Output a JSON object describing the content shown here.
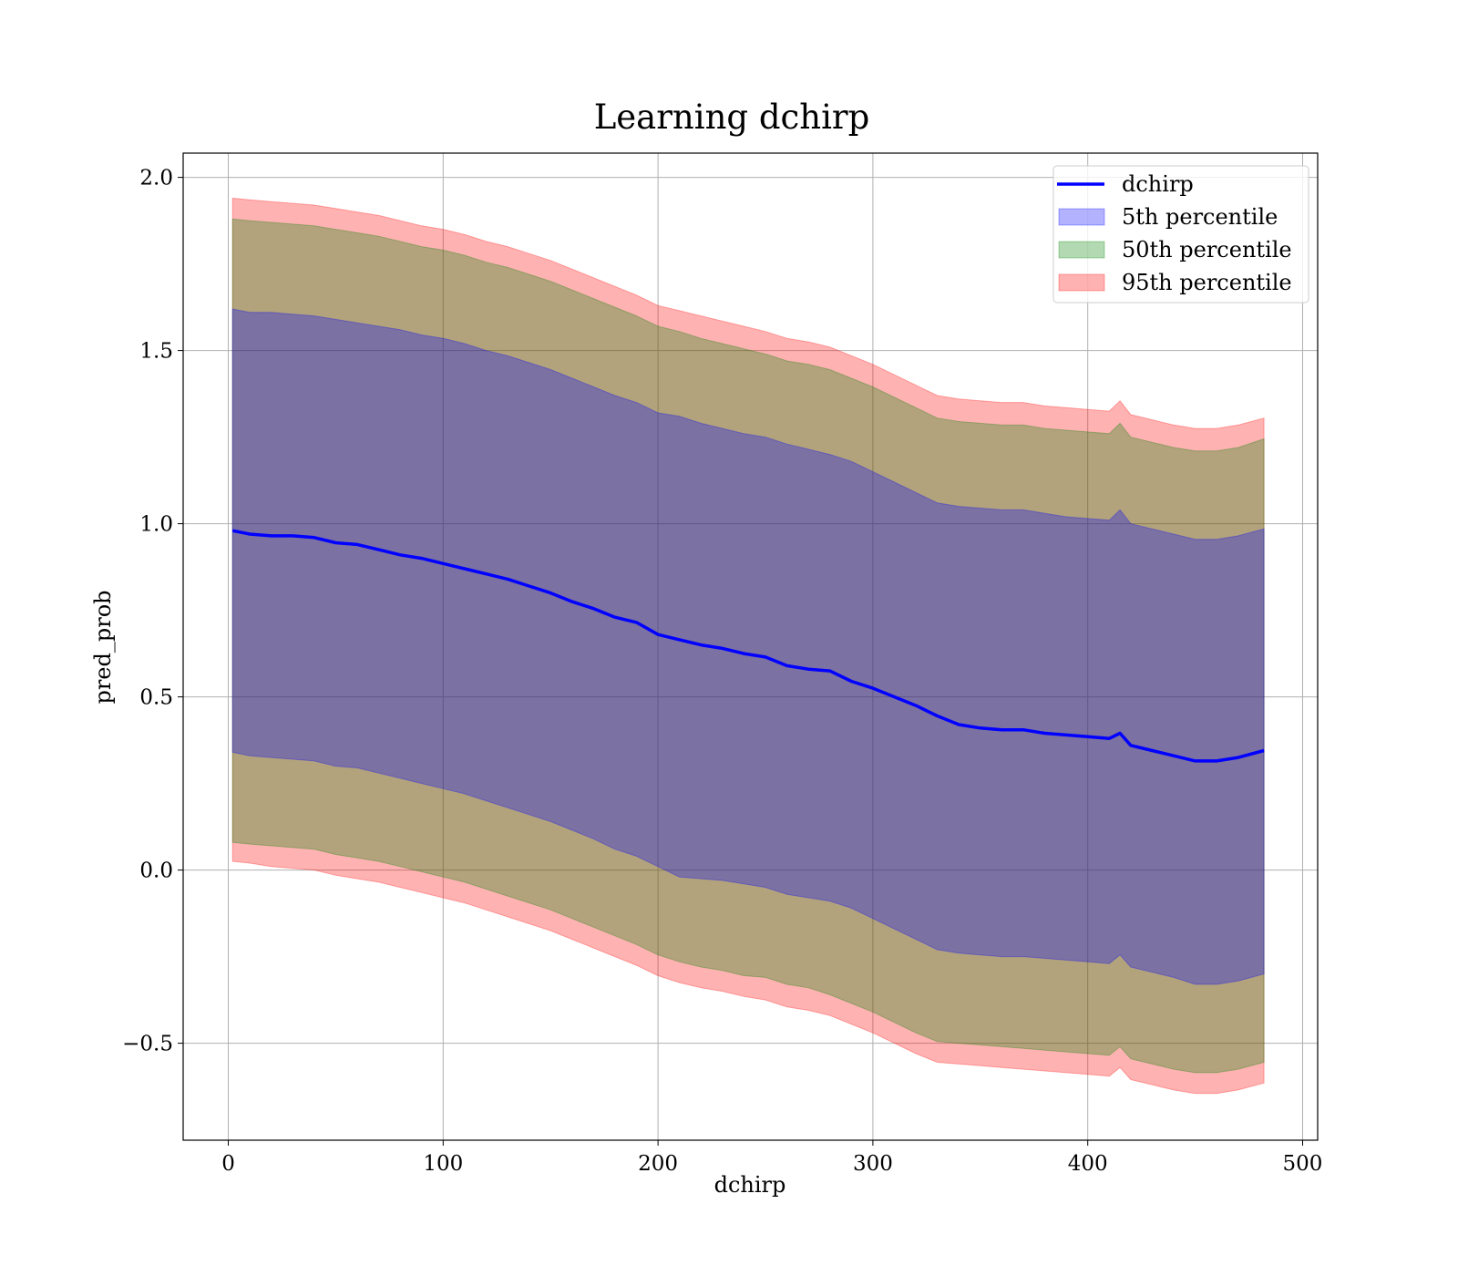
{
  "chart_data": {
    "type": "area",
    "title": "Learning dchirp",
    "xlabel": "dchirp",
    "ylabel": "pred_prob",
    "xlim": [
      -21,
      507
    ],
    "ylim": [
      -0.78,
      2.07
    ],
    "xticks": [
      0,
      100,
      200,
      300,
      400,
      500
    ],
    "yticks": [
      -0.5,
      0.0,
      0.5,
      1.0,
      1.5,
      2.0
    ],
    "ytick_labels": [
      "−0.5",
      "0.0",
      "0.5",
      "1.0",
      "1.5",
      "2.0"
    ],
    "grid": true,
    "legend_position": "top-right",
    "x": [
      2,
      10,
      20,
      30,
      40,
      50,
      60,
      70,
      80,
      90,
      100,
      110,
      120,
      130,
      140,
      150,
      160,
      170,
      180,
      190,
      200,
      210,
      220,
      230,
      240,
      250,
      260,
      270,
      280,
      290,
      300,
      310,
      320,
      330,
      340,
      350,
      360,
      370,
      380,
      390,
      400,
      410,
      415,
      420,
      430,
      440,
      450,
      460,
      470,
      482
    ],
    "series": [
      {
        "name": "dchirp",
        "type": "line",
        "color": "#0000ff",
        "values": [
          0.98,
          0.97,
          0.965,
          0.965,
          0.96,
          0.945,
          0.94,
          0.925,
          0.91,
          0.9,
          0.885,
          0.87,
          0.855,
          0.84,
          0.82,
          0.8,
          0.775,
          0.755,
          0.73,
          0.715,
          0.68,
          0.665,
          0.65,
          0.64,
          0.625,
          0.615,
          0.59,
          0.58,
          0.575,
          0.545,
          0.525,
          0.5,
          0.475,
          0.445,
          0.42,
          0.41,
          0.405,
          0.405,
          0.395,
          0.39,
          0.385,
          0.38,
          0.395,
          0.36,
          0.345,
          0.33,
          0.315,
          0.315,
          0.325,
          0.345
        ]
      },
      {
        "name": "5th percentile",
        "type": "band",
        "color": "#0000ff",
        "upper": [
          1.62,
          1.61,
          1.61,
          1.605,
          1.6,
          1.59,
          1.58,
          1.57,
          1.56,
          1.545,
          1.535,
          1.52,
          1.5,
          1.485,
          1.465,
          1.445,
          1.42,
          1.395,
          1.37,
          1.35,
          1.32,
          1.31,
          1.29,
          1.275,
          1.26,
          1.25,
          1.23,
          1.215,
          1.2,
          1.18,
          1.15,
          1.12,
          1.09,
          1.06,
          1.05,
          1.045,
          1.04,
          1.04,
          1.03,
          1.02,
          1.015,
          1.01,
          1.04,
          1.0,
          0.985,
          0.97,
          0.955,
          0.955,
          0.965,
          0.985
        ],
        "lower": [
          0.34,
          0.33,
          0.325,
          0.32,
          0.315,
          0.3,
          0.295,
          0.28,
          0.265,
          0.25,
          0.235,
          0.22,
          0.2,
          0.18,
          0.16,
          0.14,
          0.115,
          0.09,
          0.06,
          0.04,
          0.01,
          -0.02,
          -0.025,
          -0.03,
          -0.04,
          -0.05,
          -0.07,
          -0.08,
          -0.09,
          -0.11,
          -0.14,
          -0.17,
          -0.2,
          -0.23,
          -0.24,
          -0.245,
          -0.25,
          -0.25,
          -0.255,
          -0.26,
          -0.265,
          -0.27,
          -0.245,
          -0.28,
          -0.295,
          -0.31,
          -0.33,
          -0.33,
          -0.32,
          -0.3
        ]
      },
      {
        "name": "50th percentile",
        "type": "band",
        "color": "#008000",
        "upper": [
          1.88,
          1.875,
          1.87,
          1.865,
          1.86,
          1.85,
          1.84,
          1.83,
          1.815,
          1.8,
          1.79,
          1.775,
          1.755,
          1.74,
          1.72,
          1.7,
          1.675,
          1.65,
          1.625,
          1.6,
          1.57,
          1.555,
          1.535,
          1.52,
          1.505,
          1.49,
          1.47,
          1.46,
          1.445,
          1.42,
          1.395,
          1.365,
          1.335,
          1.305,
          1.295,
          1.29,
          1.285,
          1.285,
          1.275,
          1.27,
          1.265,
          1.26,
          1.29,
          1.25,
          1.235,
          1.22,
          1.21,
          1.21,
          1.22,
          1.245
        ],
        "lower": [
          0.08,
          0.075,
          0.07,
          0.065,
          0.06,
          0.045,
          0.035,
          0.025,
          0.01,
          -0.005,
          -0.02,
          -0.035,
          -0.055,
          -0.075,
          -0.095,
          -0.115,
          -0.14,
          -0.165,
          -0.19,
          -0.215,
          -0.245,
          -0.265,
          -0.28,
          -0.29,
          -0.305,
          -0.31,
          -0.33,
          -0.34,
          -0.36,
          -0.385,
          -0.41,
          -0.44,
          -0.47,
          -0.495,
          -0.5,
          -0.505,
          -0.51,
          -0.515,
          -0.52,
          -0.525,
          -0.53,
          -0.535,
          -0.51,
          -0.545,
          -0.56,
          -0.575,
          -0.585,
          -0.585,
          -0.575,
          -0.555
        ]
      },
      {
        "name": "95th percentile",
        "type": "band",
        "color": "#ff0000",
        "upper": [
          1.94,
          1.935,
          1.93,
          1.925,
          1.92,
          1.91,
          1.9,
          1.89,
          1.875,
          1.86,
          1.85,
          1.835,
          1.815,
          1.8,
          1.78,
          1.76,
          1.735,
          1.71,
          1.685,
          1.66,
          1.63,
          1.615,
          1.6,
          1.585,
          1.57,
          1.555,
          1.535,
          1.525,
          1.51,
          1.485,
          1.46,
          1.43,
          1.4,
          1.37,
          1.36,
          1.355,
          1.35,
          1.35,
          1.34,
          1.335,
          1.33,
          1.325,
          1.355,
          1.315,
          1.3,
          1.285,
          1.275,
          1.275,
          1.285,
          1.305
        ],
        "lower": [
          0.025,
          0.02,
          0.01,
          0.005,
          0.0,
          -0.015,
          -0.025,
          -0.035,
          -0.05,
          -0.065,
          -0.08,
          -0.095,
          -0.115,
          -0.135,
          -0.155,
          -0.175,
          -0.2,
          -0.225,
          -0.25,
          -0.275,
          -0.305,
          -0.325,
          -0.34,
          -0.35,
          -0.365,
          -0.375,
          -0.395,
          -0.405,
          -0.42,
          -0.445,
          -0.47,
          -0.5,
          -0.53,
          -0.555,
          -0.56,
          -0.565,
          -0.57,
          -0.575,
          -0.58,
          -0.585,
          -0.59,
          -0.595,
          -0.57,
          -0.605,
          -0.62,
          -0.635,
          -0.645,
          -0.645,
          -0.635,
          -0.615
        ]
      }
    ]
  }
}
